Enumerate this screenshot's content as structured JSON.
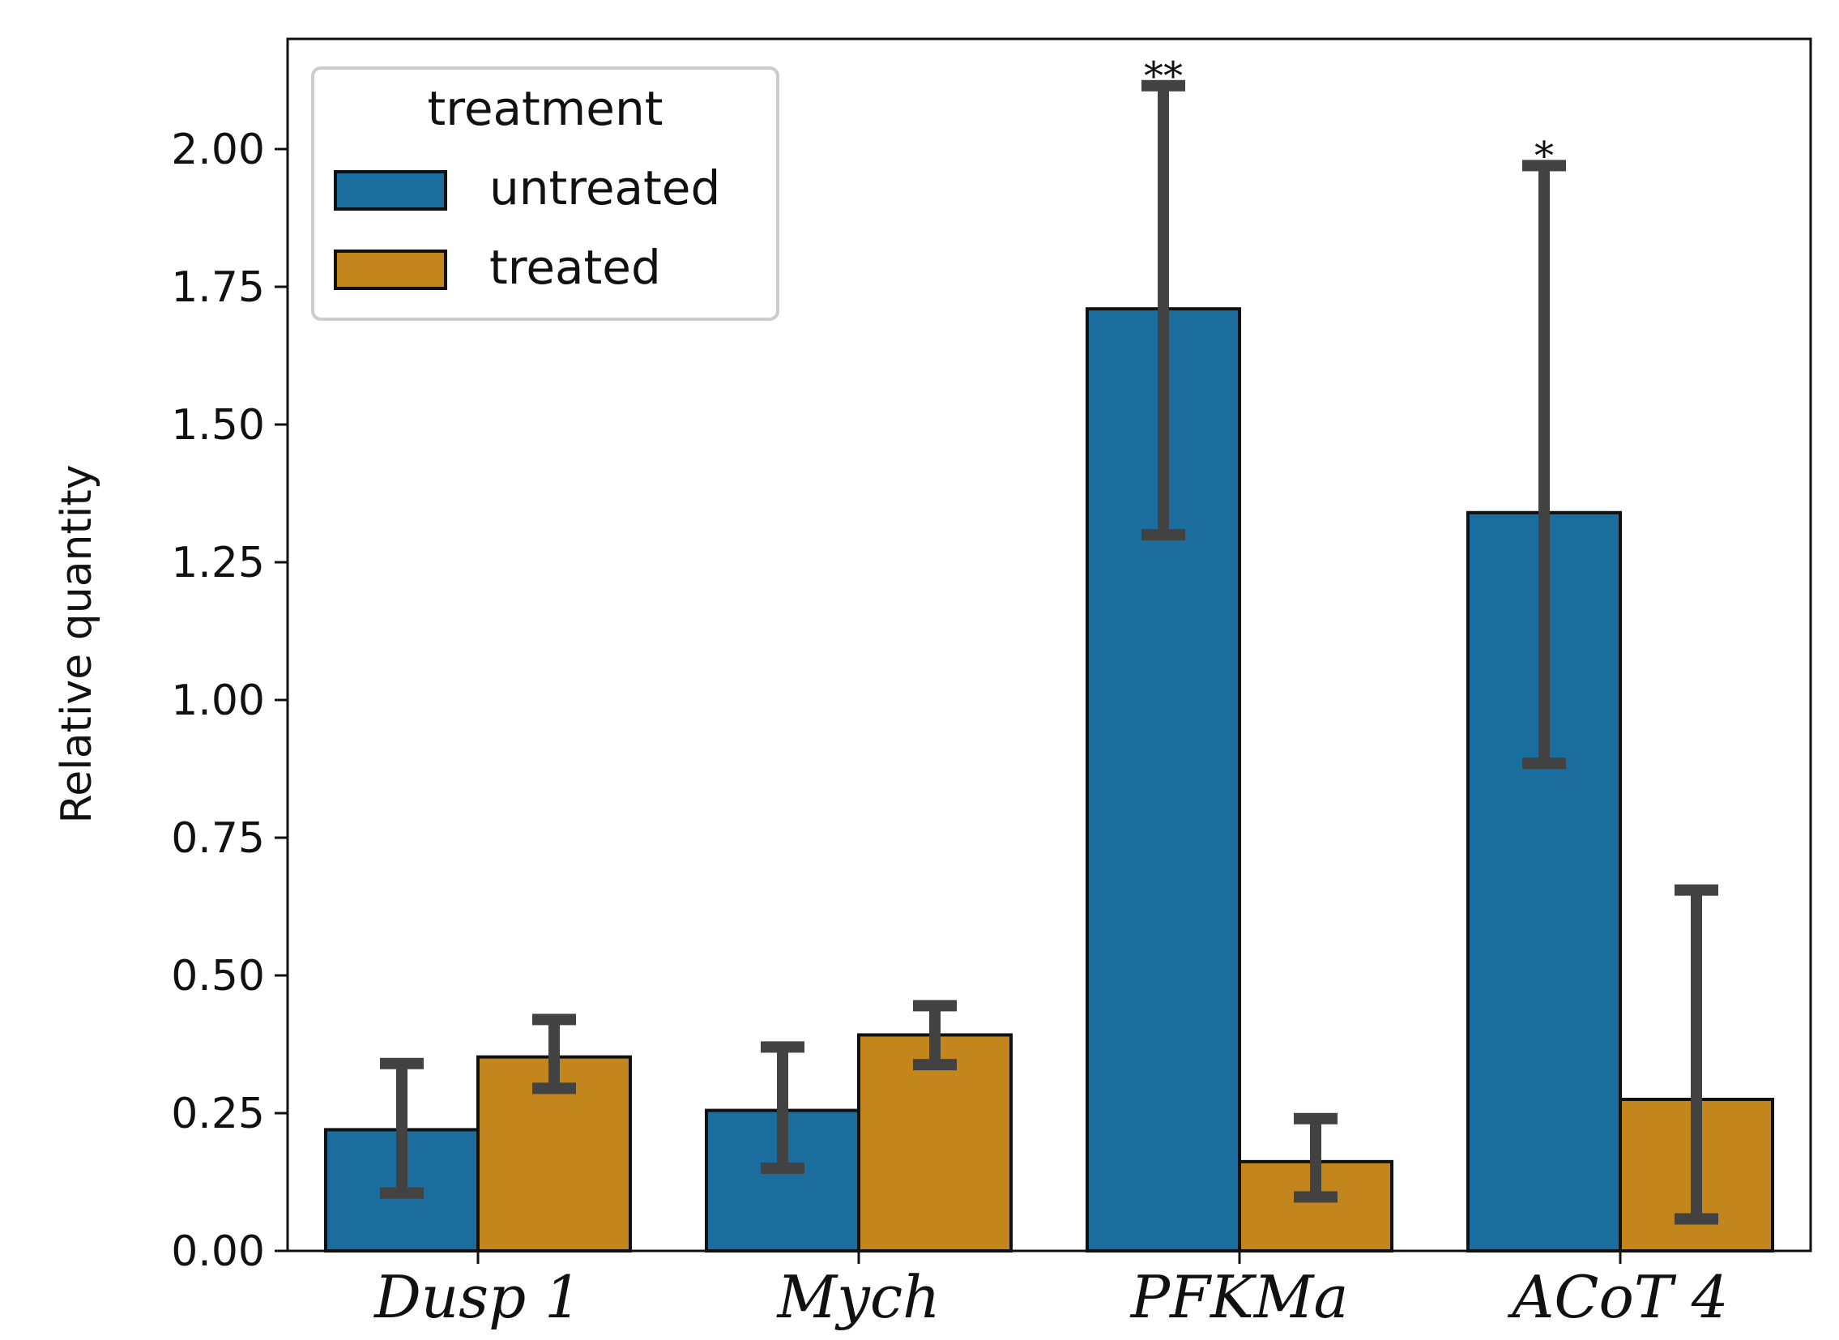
{
  "chart_data": {
    "type": "bar",
    "title": "",
    "xlabel": "",
    "ylabel": "Relative quantity",
    "ylim": [
      0,
      2.2
    ],
    "yticks": [
      "0.00",
      "0.25",
      "0.50",
      "0.75",
      "1.00",
      "1.25",
      "1.50",
      "1.75",
      "2.00"
    ],
    "grid": false,
    "categories": [
      "Dusp 1",
      "Mych",
      "PFKMa",
      "ACoT 4"
    ],
    "legend": {
      "title": "treatment",
      "placement": "top-left"
    },
    "series": [
      {
        "name": "untreated",
        "color": "#1a6d9c",
        "values": [
          0.22,
          0.255,
          1.71,
          1.34
        ],
        "err_low": [
          0.105,
          0.15,
          1.3,
          0.885
        ],
        "err_high": [
          0.34,
          0.37,
          2.115,
          1.97
        ]
      },
      {
        "name": "treated",
        "color": "#c3861d",
        "values": [
          0.352,
          0.392,
          0.162,
          0.275
        ],
        "err_low": [
          0.295,
          0.338,
          0.098,
          0.058
        ],
        "err_high": [
          0.42,
          0.445,
          0.24,
          0.655
        ]
      }
    ],
    "annotations": [
      {
        "category": "PFKMa",
        "series": "untreated",
        "text": "**"
      },
      {
        "category": "ACoT 4",
        "series": "untreated",
        "text": "*"
      }
    ]
  }
}
